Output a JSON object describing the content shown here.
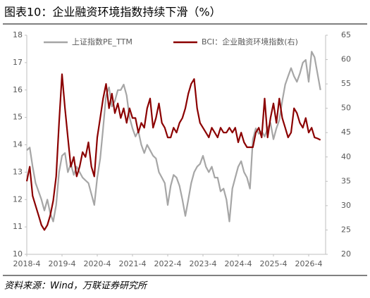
{
  "chart_data": {
    "type": "line",
    "title": "图表10：企业融资环境指数持续下滑（%）",
    "source": "资料来源：Wind，万联证券研究所",
    "legend": "top",
    "categories": [
      "2018-4",
      null,
      null,
      null,
      null,
      null,
      null,
      null,
      null,
      null,
      null,
      null,
      "2019-4",
      null,
      null,
      null,
      null,
      null,
      null,
      null,
      null,
      null,
      null,
      null,
      "2020-4",
      null,
      null,
      null,
      null,
      null,
      null,
      null,
      null,
      null,
      null,
      null,
      "2021-4",
      null,
      null,
      null,
      null,
      null,
      null,
      null,
      null,
      null,
      null,
      null,
      "2022-4",
      null,
      null,
      null,
      null,
      null,
      null,
      null,
      null,
      null,
      null,
      null,
      "2023-4",
      null,
      null,
      null,
      null,
      null,
      null,
      null,
      null,
      null,
      null,
      null,
      "2024-4",
      null,
      null,
      null,
      null,
      null,
      null,
      null,
      null,
      null,
      null,
      null,
      "2025-4",
      null,
      null,
      null,
      null,
      null,
      null,
      null,
      null,
      null,
      null,
      null,
      "2026-4",
      null,
      null,
      null,
      null
    ],
    "ylim": [
      10,
      18
    ],
    "yticks": [
      10,
      11,
      12,
      13,
      14,
      15,
      16,
      17,
      18
    ],
    "y2lim": [
      20,
      65
    ],
    "y2ticks": [
      20,
      25,
      30,
      35,
      40,
      45,
      50,
      55,
      60,
      65
    ],
    "series": [
      {
        "name": "上证指数PE_TTM",
        "color": "#a6a6a6",
        "values": [
          13.8,
          13.9,
          13.2,
          12.6,
          12.3,
          12.0,
          11.6,
          12.0,
          11.5,
          11.2,
          11.8,
          13.0,
          13.6,
          13.7,
          13.0,
          13.3,
          12.9,
          13.2,
          13.0,
          12.8,
          12.7,
          12.6,
          12.2,
          11.8,
          12.8,
          13.5,
          14.6,
          15.8,
          16.1,
          15.4,
          15.6,
          16.0,
          16.0,
          16.2,
          15.8,
          15.0,
          14.6,
          14.3,
          14.5,
          14.0,
          13.7,
          14.0,
          13.8,
          13.6,
          13.5,
          13.0,
          12.8,
          12.6,
          11.8,
          12.5,
          12.9,
          12.8,
          12.5,
          12.0,
          11.4,
          12.0,
          12.6,
          13.0,
          13.2,
          13.3,
          13.6,
          13.2,
          13.0,
          13.2,
          12.8,
          12.8,
          12.3,
          12.4,
          12.0,
          11.2,
          12.4,
          12.8,
          13.2,
          13.4,
          13.0,
          12.8,
          12.4,
          14.2,
          14.6,
          14.4,
          14.5,
          14.3,
          14.6,
          14.8,
          14.2,
          14.6,
          14.9,
          15.6,
          16.2,
          16.5,
          16.8,
          16.5,
          16.3,
          16.6,
          17.0,
          17.1,
          16.3,
          17.4,
          17.2,
          16.6,
          16.0
        ]
      },
      {
        "name": "BCI：企业融资环境指数(右)",
        "color": "#8b0000",
        "axis": "y2",
        "values": [
          35,
          38,
          32,
          30,
          28,
          26,
          25,
          26,
          28,
          31,
          36,
          47,
          57,
          50,
          44,
          38,
          40,
          36,
          38,
          41,
          40,
          43,
          38,
          36,
          44,
          48,
          52,
          55,
          50,
          53,
          49,
          51,
          48,
          50,
          47,
          50,
          48,
          48,
          45,
          47,
          46,
          50,
          52,
          46,
          48,
          51,
          47,
          46,
          44,
          44,
          46,
          45,
          47,
          48,
          50,
          53,
          55,
          56,
          50,
          47,
          46,
          45,
          44,
          46,
          45,
          44,
          46,
          45,
          45,
          46,
          45,
          46,
          43,
          45,
          43,
          42,
          42,
          42,
          45,
          46,
          44,
          52,
          44,
          48,
          51,
          47,
          52,
          48,
          46,
          44,
          45,
          50,
          49,
          47,
          46,
          48,
          45,
          46,
          44,
          43.8,
          43.5
        ]
      }
    ]
  }
}
